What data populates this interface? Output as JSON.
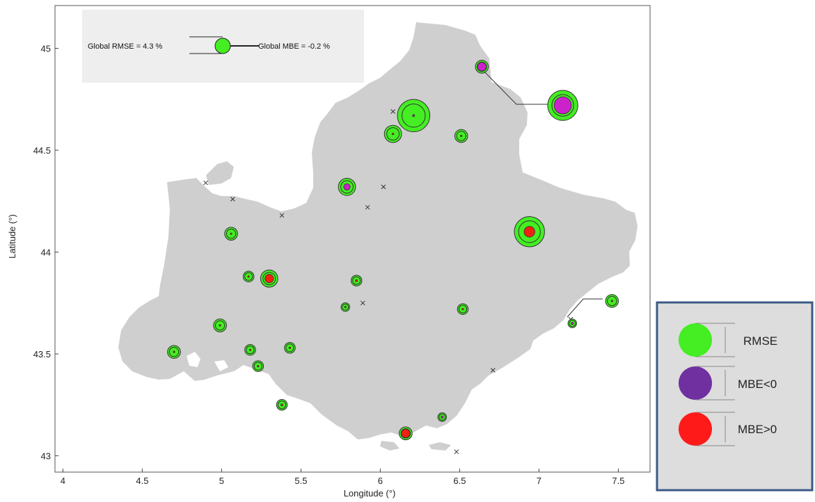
{
  "axes": {
    "xlabel": "Longitude (°)",
    "ylabel": "Latitude (°)",
    "xticks": [
      "4",
      "4.5",
      "5",
      "5.5",
      "6",
      "6.5",
      "7",
      "7.5"
    ],
    "yticks": [
      "43",
      "43.5",
      "44",
      "44.5",
      "45"
    ],
    "xlim": [
      3.95,
      7.7
    ],
    "ylim": [
      42.92,
      45.21
    ]
  },
  "global_legend": {
    "rmse_text": "Global RMSE = 4.3 %",
    "mbe_text": "Global MBE = -0.2 %"
  },
  "key": {
    "items": [
      {
        "label": "RMSE",
        "color": "#44ee22"
      },
      {
        "label": "MBE<0",
        "color": "#7030a0"
      },
      {
        "label": "MBE>0",
        "color": "#ff1a1a"
      }
    ],
    "border_color": "#3a5a85",
    "background": "#dddddd"
  },
  "colors": {
    "region": "#cfcfcf",
    "rmse": "#44ee22",
    "mbe_negative": "#cc22cc",
    "mbe_positive": "#ee2211"
  },
  "chart_data": {
    "type": "scatter",
    "xlabel": "Longitude (°)",
    "ylabel": "Latitude (°)",
    "xlim": [
      3.95,
      7.7
    ],
    "ylim": [
      42.92,
      45.21
    ],
    "stations": [
      {
        "lon": 6.64,
        "lat": 44.91,
        "rmse": 6,
        "mbe": -4
      },
      {
        "lon": 7.15,
        "lat": 44.72,
        "rmse": 14,
        "mbe": -8
      },
      {
        "lon": 6.21,
        "lat": 44.67,
        "rmse": 15,
        "mbe": -1
      },
      {
        "lon": 6.08,
        "lat": 44.58,
        "rmse": 8,
        "mbe": 0.5
      },
      {
        "lon": 6.51,
        "lat": 44.57,
        "rmse": 6,
        "mbe": 0.5
      },
      {
        "lon": 5.79,
        "lat": 44.32,
        "rmse": 8,
        "mbe": -3
      },
      {
        "lon": 6.94,
        "lat": 44.1,
        "rmse": 14,
        "mbe": 5
      },
      {
        "lon": 5.06,
        "lat": 44.09,
        "rmse": 6,
        "mbe": 0.5
      },
      {
        "lon": 5.3,
        "lat": 43.87,
        "rmse": 8,
        "mbe": 4
      },
      {
        "lon": 5.17,
        "lat": 43.88,
        "rmse": 5,
        "mbe": 0.5
      },
      {
        "lon": 5.85,
        "lat": 43.86,
        "rmse": 5,
        "mbe": 1
      },
      {
        "lon": 5.78,
        "lat": 43.73,
        "rmse": 4,
        "mbe": 0.5
      },
      {
        "lon": 6.52,
        "lat": 43.72,
        "rmse": 5,
        "mbe": 0.5
      },
      {
        "lon": 7.46,
        "lat": 43.76,
        "rmse": 6,
        "mbe": 0.5
      },
      {
        "lon": 7.21,
        "lat": 43.65,
        "rmse": 4,
        "mbe": -1
      },
      {
        "lon": 4.99,
        "lat": 43.64,
        "rmse": 6,
        "mbe": 0.5
      },
      {
        "lon": 4.7,
        "lat": 43.51,
        "rmse": 6,
        "mbe": 0.5
      },
      {
        "lon": 5.18,
        "lat": 43.52,
        "rmse": 5,
        "mbe": 0.5
      },
      {
        "lon": 5.43,
        "lat": 43.53,
        "rmse": 5,
        "mbe": 0.5
      },
      {
        "lon": 5.23,
        "lat": 43.44,
        "rmse": 5,
        "mbe": 0.5
      },
      {
        "lon": 5.38,
        "lat": 43.25,
        "rmse": 5,
        "mbe": 1
      },
      {
        "lon": 6.39,
        "lat": 43.19,
        "rmse": 4,
        "mbe": -1
      },
      {
        "lon": 6.16,
        "lat": 43.11,
        "rmse": 6,
        "mbe": 4
      }
    ],
    "missing_stations": [
      {
        "lon": 4.9,
        "lat": 44.34
      },
      {
        "lon": 5.07,
        "lat": 44.26
      },
      {
        "lon": 5.38,
        "lat": 44.18
      },
      {
        "lon": 6.02,
        "lat": 44.32
      },
      {
        "lon": 5.92,
        "lat": 44.22
      },
      {
        "lon": 6.08,
        "lat": 44.69
      },
      {
        "lon": 5.89,
        "lat": 43.75
      },
      {
        "lon": 7.2,
        "lat": 43.67
      },
      {
        "lon": 6.71,
        "lat": 43.42
      },
      {
        "lon": 6.48,
        "lat": 43.02
      }
    ]
  }
}
